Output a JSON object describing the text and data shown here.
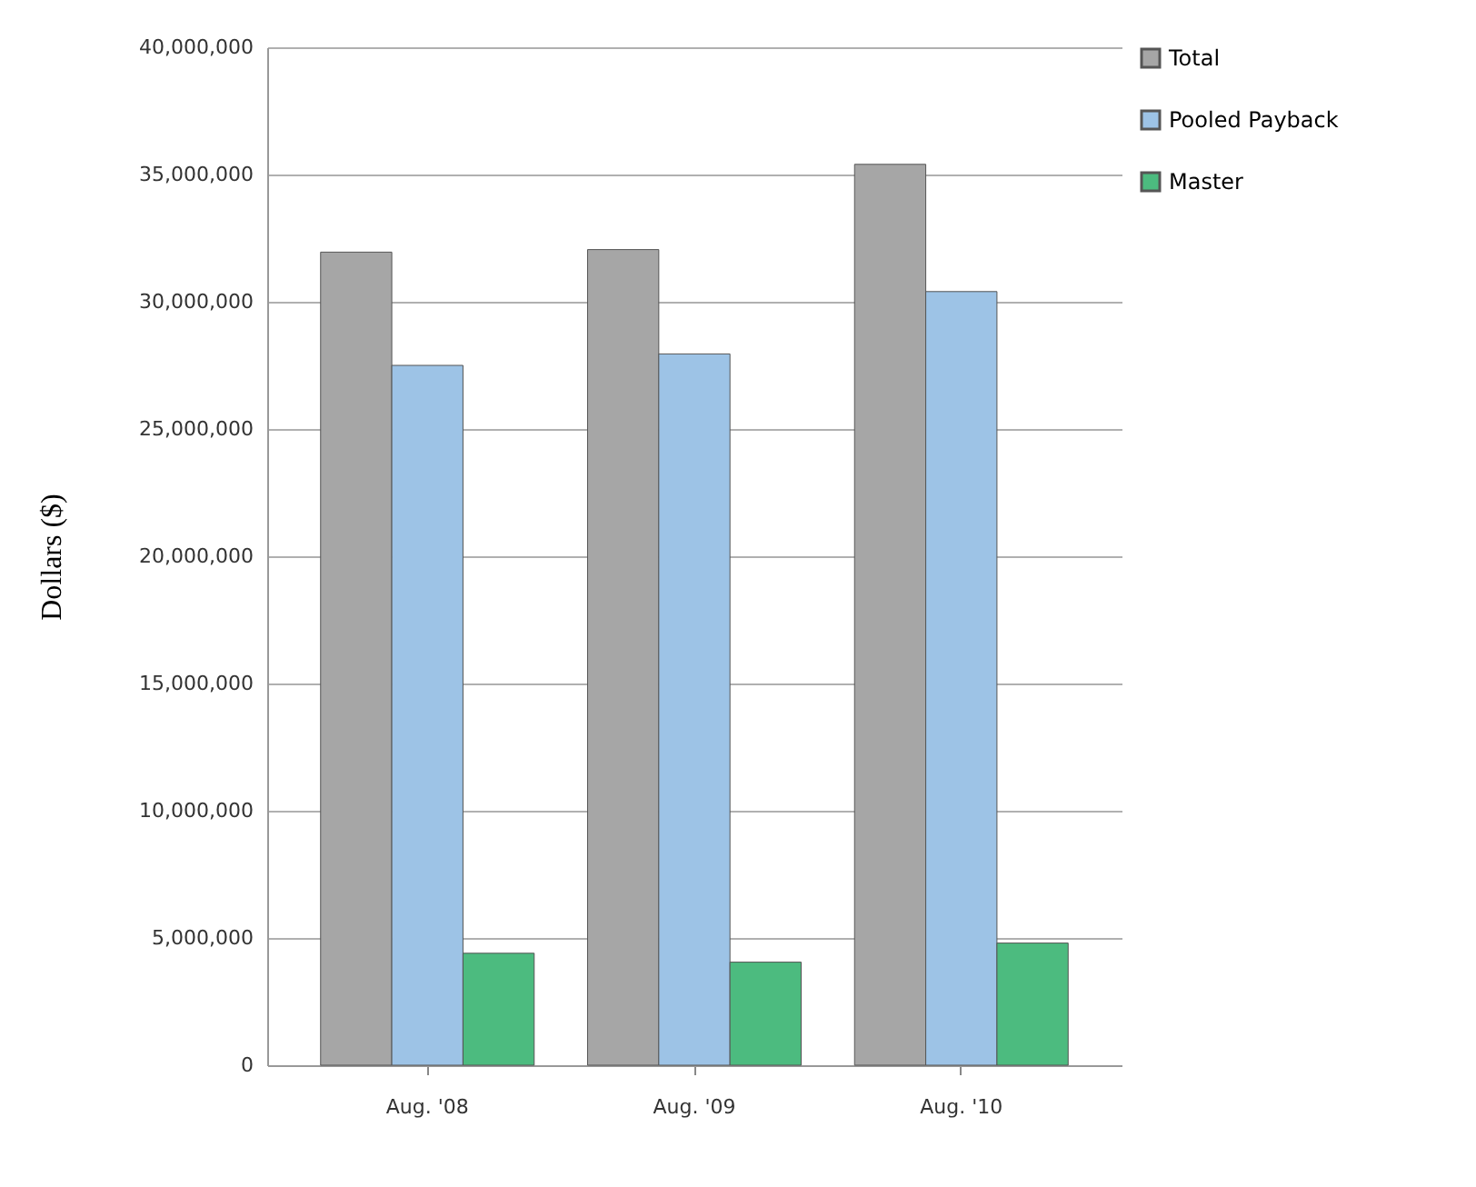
{
  "chart_data": {
    "type": "bar",
    "ylabel": "Dollars ($)",
    "categories": [
      "Aug. '08",
      "Aug. '09",
      "Aug. '10"
    ],
    "series": [
      {
        "name": "Total",
        "color": "#a6a6a6",
        "values": [
          31950000,
          32050000,
          35400000
        ]
      },
      {
        "name": "Pooled Payback",
        "color": "#9dc3e6",
        "values": [
          27500000,
          27950000,
          30400000
        ]
      },
      {
        "name": "Master",
        "color": "#4cbb7f",
        "values": [
          4400000,
          4050000,
          4800000
        ]
      }
    ],
    "ylim": [
      0,
      40000000
    ],
    "yticks": [
      0,
      {
        "value": 5000000,
        "label": "5,000,000"
      },
      {
        "value": 10000000,
        "label": "10,000,000"
      },
      {
        "value": 15000000,
        "label": "15,000,000"
      },
      {
        "value": 20000000,
        "label": "20,000,000"
      },
      {
        "value": 25000000,
        "label": "25,000,000"
      },
      {
        "value": 30000000,
        "label": "30,000,000"
      },
      {
        "value": 35000000,
        "label": "35,000,000"
      },
      {
        "value": 40000000,
        "label": "40,000,000"
      }
    ],
    "grid": "y",
    "legend": "right"
  }
}
